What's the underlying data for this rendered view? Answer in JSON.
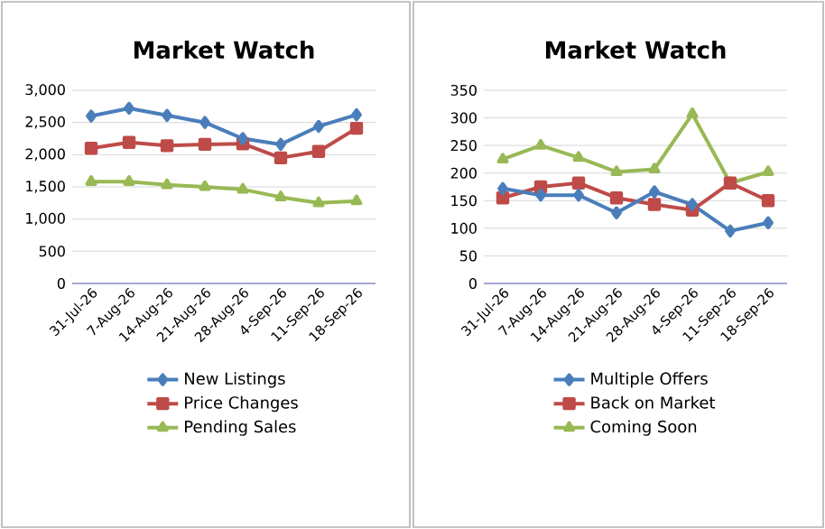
{
  "chart_data": [
    {
      "type": "line",
      "title": "Market Watch",
      "categories": [
        "31-Jul-26",
        "7-Aug-26",
        "14-Aug-26",
        "21-Aug-26",
        "28-Aug-26",
        "4-Sep-26",
        "11-Sep-26",
        "18-Sep-26"
      ],
      "series": [
        {
          "name": "New Listings",
          "color": "#4a7ebb",
          "marker": "diamond",
          "values": [
            2600,
            2720,
            2610,
            2500,
            2250,
            2160,
            2440,
            2620
          ]
        },
        {
          "name": "Price Changes",
          "color": "#be4b48",
          "marker": "square",
          "values": [
            2100,
            2190,
            2140,
            2160,
            2170,
            1950,
            2050,
            2410
          ]
        },
        {
          "name": "Pending Sales",
          "color": "#98b954",
          "marker": "triangle",
          "values": [
            1580,
            1580,
            1530,
            1500,
            1460,
            1340,
            1250,
            1280
          ]
        }
      ],
      "ylim": [
        0,
        3000
      ],
      "yticks": [
        0,
        500,
        {
          "value": 1000,
          "label": "1,000"
        },
        {
          "value": 1500,
          "label": "1,500"
        },
        {
          "value": 2000,
          "label": "2,000"
        },
        {
          "value": 2500,
          "label": "2,500"
        },
        {
          "value": 3000,
          "label": "3,000"
        }
      ],
      "grid": "y",
      "legend": "bottom",
      "line_style": "solid"
    },
    {
      "type": "line",
      "title": "Market Watch",
      "categories": [
        "31-Jul-26",
        "7-Aug-26",
        "14-Aug-26",
        "21-Aug-26",
        "28-Aug-26",
        "4-Sep-26",
        "11-Sep-26",
        "18-Sep-26"
      ],
      "series": [
        {
          "name": "Multiple Offers",
          "color": "#4a7ebb",
          "marker": "diamond",
          "values": [
            172,
            160,
            160,
            128,
            166,
            143,
            95,
            110
          ]
        },
        {
          "name": "Back on Market",
          "color": "#be4b48",
          "marker": "square",
          "values": [
            155,
            175,
            182,
            155,
            143,
            133,
            182,
            150
          ]
        },
        {
          "name": "Coming Soon",
          "color": "#98b954",
          "marker": "triangle",
          "values": [
            225,
            250,
            228,
            202,
            207,
            307,
            182,
            202
          ]
        }
      ],
      "ylim": [
        0,
        350
      ],
      "yticks": [
        0,
        50,
        100,
        150,
        200,
        250,
        300,
        350
      ],
      "grid": "y",
      "legend": "bottom",
      "line_style": "solid"
    }
  ]
}
